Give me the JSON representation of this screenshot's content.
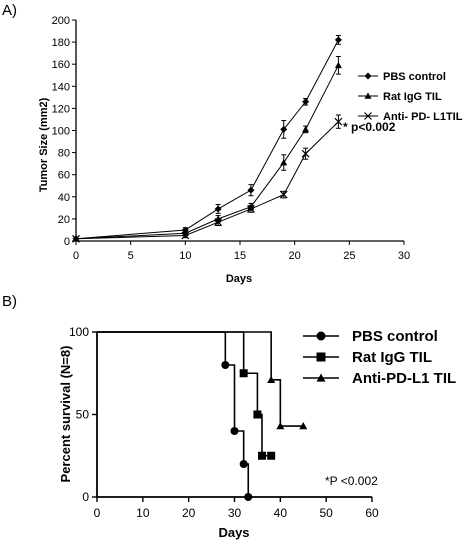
{
  "chart_data": [
    {
      "panel_label": "A)",
      "type": "line",
      "xlabel": "Days",
      "ylabel": "Tumor Size (mm2)",
      "xlim": [
        0,
        30
      ],
      "ylim": [
        0,
        200
      ],
      "xticks": [
        0,
        5,
        10,
        15,
        20,
        25,
        30
      ],
      "yticks": [
        0,
        20,
        40,
        60,
        80,
        100,
        120,
        140,
        160,
        180,
        200
      ],
      "legend_position": "right",
      "grid": false,
      "series": [
        {
          "name": "PBS control",
          "marker": "diamond",
          "x": [
            0,
            10,
            13,
            16,
            19,
            21,
            24
          ],
          "y": [
            2,
            10,
            29,
            46,
            101,
            126,
            182
          ],
          "err": [
            0,
            2,
            4,
            5,
            8,
            3,
            4
          ]
        },
        {
          "name": "Rat IgG TIL",
          "marker": "triangle",
          "x": [
            0,
            10,
            13,
            16,
            19,
            21,
            24
          ],
          "y": [
            2,
            7,
            20,
            31,
            71,
            101,
            159
          ],
          "err": [
            0,
            2,
            3,
            3,
            7,
            3,
            8
          ]
        },
        {
          "name": "Anti- PD- L1TIL",
          "marker": "x",
          "x": [
            0,
            10,
            13,
            16,
            19,
            21,
            24
          ],
          "y": [
            2,
            5,
            17,
            29,
            42,
            79,
            108
          ],
          "err": [
            0,
            2,
            3,
            3,
            3,
            5,
            6
          ]
        }
      ],
      "annotation": "* p<0.002"
    },
    {
      "panel_label": "B)",
      "type": "line",
      "subtype": "step",
      "xlabel": "Days",
      "ylabel": "Percent survival (N=8)",
      "xlim": [
        0,
        60
      ],
      "ylim": [
        0,
        100
      ],
      "xticks": [
        0,
        10,
        20,
        30,
        40,
        50,
        60
      ],
      "yticks": [
        0,
        50,
        100
      ],
      "legend_position": "top-right",
      "grid": false,
      "series": [
        {
          "name": "PBS control",
          "marker": "circle",
          "x": [
            0,
            28,
            30,
            32,
            33
          ],
          "y": [
            100,
            80,
            40,
            20,
            0
          ]
        },
        {
          "name": "Rat IgG TIL",
          "marker": "square",
          "x": [
            0,
            32,
            35,
            36,
            38
          ],
          "y": [
            100,
            75,
            50,
            25,
            25
          ]
        },
        {
          "name": "Anti-PD-L1 TIL",
          "marker": "triangle",
          "x": [
            0,
            38,
            40,
            45
          ],
          "y": [
            100,
            71,
            43,
            43
          ]
        }
      ],
      "annotation": "*P <0.002"
    }
  ]
}
